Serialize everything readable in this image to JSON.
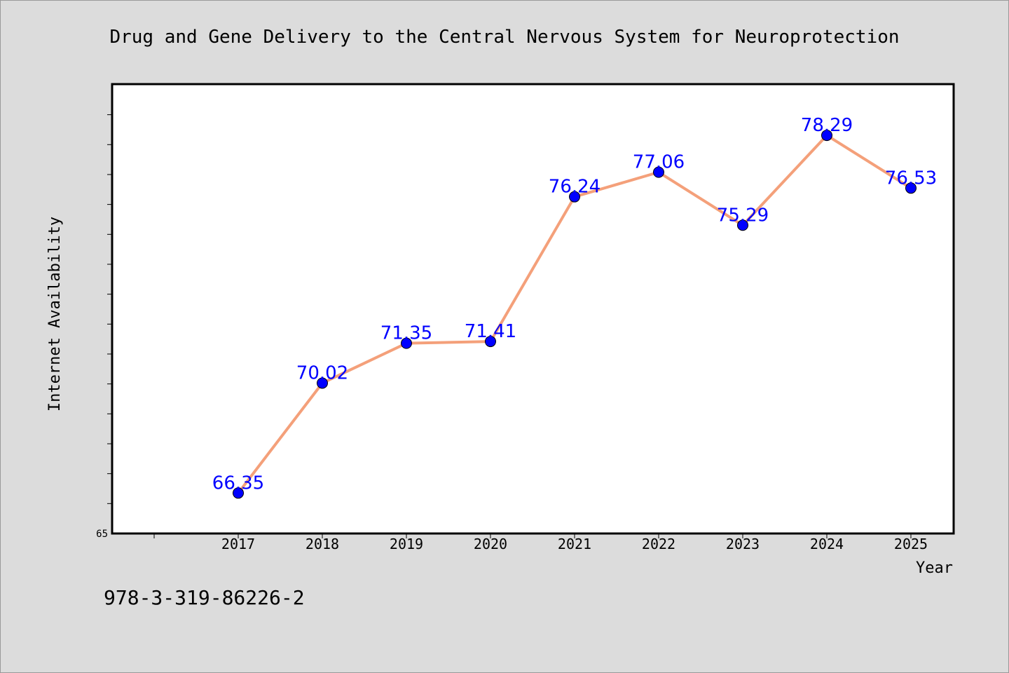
{
  "chart_data": {
    "type": "line",
    "title": "Drug and Gene Delivery to the Central Nervous System for Neuroprotection",
    "xlabel": "Year",
    "ylabel": "Internet Availability",
    "categories": [
      "2017",
      "2018",
      "2019",
      "2020",
      "2021",
      "2022",
      "2023",
      "2024",
      "2025"
    ],
    "values": [
      66.35,
      70.02,
      71.35,
      71.41,
      76.24,
      77.06,
      75.29,
      78.29,
      76.53
    ],
    "data_labels": [
      "66.35",
      "70.02",
      "71.35",
      "71.41",
      "76.24",
      "77.06",
      "75.29",
      "78.29",
      "76.53"
    ],
    "ylim": [
      65,
      80
    ],
    "y_tick_labels": [
      "65"
    ],
    "grid": false,
    "colors": {
      "line": "#f4a07a",
      "marker": "#0000ff",
      "data_label": "#0000ff",
      "background": "#dcdcdc",
      "plot_background": "#ffffff"
    }
  },
  "footer": {
    "isbn": "978-3-319-86226-2"
  }
}
